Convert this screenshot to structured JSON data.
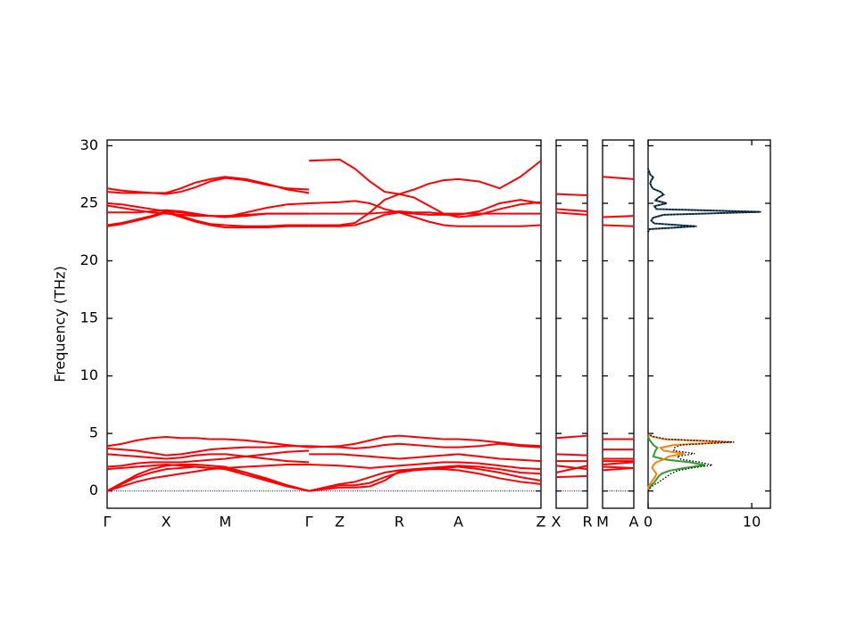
{
  "chart_data": [
    {
      "type": "band",
      "ylabel": "Frequency (THz)",
      "ylim": [
        -1.5,
        30.5
      ],
      "yticks": [
        0,
        5,
        10,
        15,
        20,
        25,
        30
      ],
      "ytick_labels": true,
      "xlim": [
        0,
        7.35
      ],
      "xticks": [
        {
          "value": 0,
          "label": "Γ"
        },
        {
          "value": 1,
          "label": "X"
        },
        {
          "value": 2,
          "label": "M"
        },
        {
          "value": 3.42,
          "label": "Γ"
        },
        {
          "value": 3.94,
          "label": "Z"
        },
        {
          "value": 4.95,
          "label": "R"
        },
        {
          "value": 5.95,
          "label": "A"
        },
        {
          "value": 7.35,
          "label": "Z"
        }
      ],
      "color": "#ff0000",
      "zero_line": {
        "value": 0,
        "color": "#0000ff"
      },
      "segments": [
        {
          "x": [
            0,
            0.25,
            0.5,
            0.75,
            1,
            1.25,
            1.5,
            1.75,
            2,
            2.35,
            2.7,
            3.05,
            3.42
          ],
          "series": [
            {
              "values": [
                26.3,
                26.1,
                26.0,
                25.9,
                25.9,
                26.3,
                26.8,
                27.1,
                27.3,
                27.1,
                26.7,
                26.2,
                25.9
              ]
            },
            {
              "values": [
                26.0,
                25.9,
                25.9,
                25.9,
                25.8,
                26.0,
                26.4,
                26.9,
                27.2,
                27.0,
                26.6,
                26.3,
                26.2
              ]
            },
            {
              "values": [
                25.0,
                24.9,
                24.7,
                24.5,
                24.3,
                24.2,
                24.0,
                23.9,
                23.8,
                24.2,
                24.6,
                24.9,
                25.0
              ]
            },
            {
              "values": [
                24.8,
                24.6,
                24.4,
                24.2,
                24.1,
                24.0,
                23.9,
                23.9,
                23.9,
                24.0,
                24.1,
                24.1,
                24.1
              ]
            },
            {
              "values": [
                24.2,
                24.2,
                24.2,
                24.3,
                24.4,
                24.3,
                24.1,
                23.9,
                23.8,
                23.9,
                24.1,
                24.1,
                24.1
              ]
            },
            {
              "values": [
                23.1,
                23.3,
                23.6,
                23.9,
                24.3,
                23.9,
                23.5,
                23.2,
                23.1,
                23.0,
                23.0,
                23.1,
                23.1
              ]
            },
            {
              "values": [
                23.0,
                23.2,
                23.5,
                23.8,
                24.2,
                23.8,
                23.4,
                23.1,
                22.9,
                22.9,
                22.9,
                23.0,
                23.0
              ]
            },
            {
              "values": [
                3.9,
                4.1,
                4.4,
                4.6,
                4.7,
                4.6,
                4.6,
                4.5,
                4.5,
                4.4,
                4.2,
                4.0,
                3.8
              ]
            },
            {
              "values": [
                3.7,
                3.6,
                3.5,
                3.3,
                3.1,
                3.2,
                3.4,
                3.6,
                3.7,
                3.8,
                3.8,
                3.9,
                3.9
              ]
            },
            {
              "values": [
                3.2,
                3.1,
                3.0,
                2.9,
                2.8,
                2.9,
                3.1,
                3.2,
                3.2,
                3.0,
                2.8,
                2.6,
                2.5
              ]
            },
            {
              "values": [
                2.1,
                2.2,
                2.4,
                2.5,
                2.5,
                2.5,
                2.6,
                2.7,
                2.8,
                3.0,
                3.2,
                3.4,
                3.5
              ]
            },
            {
              "values": [
                1.9,
                2.0,
                2.1,
                2.2,
                2.3,
                2.2,
                2.1,
                2.0,
                2.0,
                2.1,
                2.2,
                2.3,
                2.3
              ]
            },
            {
              "values": [
                0,
                0.7,
                1.4,
                1.9,
                2.2,
                2.3,
                2.3,
                2.2,
                2.1,
                1.6,
                1.1,
                0.5,
                0
              ]
            },
            {
              "values": [
                0,
                0.6,
                1.2,
                1.6,
                1.9,
                2.0,
                2.1,
                2.0,
                1.9,
                1.4,
                0.9,
                0.4,
                0
              ]
            },
            {
              "values": [
                0,
                0.4,
                0.8,
                1.1,
                1.3,
                1.5,
                1.7,
                1.9,
                2.0,
                1.6,
                1.0,
                0.5,
                0
              ]
            }
          ]
        },
        {
          "x": [
            3.42,
            3.94,
            4.2,
            4.45,
            4.7,
            4.95,
            5.2,
            5.45,
            5.7,
            5.95,
            6.3,
            6.65,
            7.0,
            7.35
          ],
          "series": [
            {
              "values": [
                28.7,
                28.8,
                28.0,
                26.9,
                26.0,
                25.8,
                26.2,
                26.7,
                27.0,
                27.1,
                26.9,
                26.3,
                27.3,
                28.7
              ]
            },
            {
              "values": [
                25.0,
                25.1,
                25.2,
                25.0,
                24.5,
                24.2,
                24.1,
                24.0,
                24.0,
                24.0,
                24.3,
                25.0,
                25.3,
                25.0
              ]
            },
            {
              "values": [
                24.1,
                24.1,
                24.1,
                24.1,
                24.2,
                24.3,
                24.2,
                24.2,
                24.1,
                24.1,
                24.1,
                24.1,
                24.1,
                24.1
              ]
            },
            {
              "values": [
                23.1,
                23.1,
                23.3,
                24.2,
                25.3,
                25.8,
                25.5,
                24.8,
                24.1,
                23.8,
                24.0,
                24.5,
                24.9,
                25.1
              ]
            },
            {
              "values": [
                23.0,
                23.0,
                23.1,
                23.5,
                24.0,
                24.2,
                23.8,
                23.4,
                23.1,
                23.0,
                23.0,
                23.0,
                23.0,
                23.1
              ]
            },
            {
              "values": [
                3.8,
                3.9,
                4.1,
                4.4,
                4.7,
                4.8,
                4.7,
                4.6,
                4.5,
                4.5,
                4.4,
                4.2,
                4.0,
                3.9
              ]
            },
            {
              "values": [
                3.9,
                3.8,
                3.7,
                3.8,
                4.0,
                4.1,
                4.0,
                3.9,
                3.8,
                3.8,
                3.9,
                4.1,
                3.9,
                3.8
              ]
            },
            {
              "values": [
                3.2,
                3.2,
                3.1,
                3.0,
                2.9,
                2.8,
                2.9,
                3.0,
                3.1,
                3.2,
                3.0,
                2.8,
                2.7,
                2.6
              ]
            },
            {
              "values": [
                2.3,
                2.2,
                2.1,
                2.0,
                2.1,
                2.2,
                2.3,
                2.4,
                2.5,
                2.5,
                2.4,
                2.2,
                2.0,
                1.9
              ]
            },
            {
              "values": [
                0,
                0.6,
                0.8,
                1.2,
                1.6,
                1.8,
                1.9,
                2.0,
                2.1,
                2.2,
                2.1,
                1.9,
                1.6,
                1.5
              ]
            },
            {
              "values": [
                0,
                0.5,
                0.5,
                0.7,
                1.2,
                1.6,
                1.8,
                1.9,
                2.0,
                2.1,
                1.9,
                1.6,
                1.2,
                0.9
              ]
            },
            {
              "values": [
                0,
                0.3,
                0.3,
                0.4,
                0.9,
                1.7,
                1.8,
                1.9,
                1.9,
                1.8,
                1.5,
                1.1,
                0.8,
                0.6
              ]
            }
          ]
        }
      ]
    },
    {
      "type": "band",
      "ylim": [
        -1.5,
        30.5
      ],
      "yticks": [
        0,
        5,
        10,
        15,
        20,
        25,
        30
      ],
      "ytick_labels": false,
      "xlim": [
        0,
        1
      ],
      "xticks": [
        {
          "value": 0,
          "label": "X"
        },
        {
          "value": 1,
          "label": "R"
        }
      ],
      "color": "#ff0000",
      "zero_line": {
        "value": 0,
        "color": "#0000ff"
      },
      "segments": [
        {
          "x": [
            0,
            1
          ],
          "series": [
            {
              "values": [
                25.8,
                25.7
              ]
            },
            {
              "values": [
                24.5,
                24.3
              ]
            },
            {
              "values": [
                24.2,
                24.0
              ]
            },
            {
              "values": [
                4.6,
                4.8
              ]
            },
            {
              "values": [
                3.2,
                3.1
              ]
            },
            {
              "values": [
                2.6,
                2.6
              ]
            },
            {
              "values": [
                2.2,
                1.9
              ]
            },
            {
              "values": [
                1.6,
                2.2
              ]
            },
            {
              "values": [
                1.2,
                1.3
              ]
            }
          ]
        }
      ]
    },
    {
      "type": "band",
      "ylim": [
        -1.5,
        30.5
      ],
      "yticks": [
        0,
        5,
        10,
        15,
        20,
        25,
        30
      ],
      "ytick_labels": false,
      "xlim": [
        0,
        1
      ],
      "xticks": [
        {
          "value": 0,
          "label": "M"
        },
        {
          "value": 1,
          "label": "A"
        }
      ],
      "color": "#ff0000",
      "zero_line": {
        "value": 0,
        "color": "#0000ff"
      },
      "segments": [
        {
          "x": [
            0,
            1
          ],
          "series": [
            {
              "values": [
                27.3,
                27.1
              ]
            },
            {
              "values": [
                23.8,
                23.9
              ]
            },
            {
              "values": [
                23.1,
                23.0
              ]
            },
            {
              "values": [
                4.5,
                4.5
              ]
            },
            {
              "values": [
                3.6,
                3.6
              ]
            },
            {
              "values": [
                2.8,
                2.8
              ]
            },
            {
              "values": [
                2.6,
                2.6
              ]
            },
            {
              "values": [
                2.3,
                2.5
              ]
            },
            {
              "values": [
                2.1,
                2.0
              ]
            },
            {
              "values": [
                1.8,
                2.0
              ]
            }
          ]
        }
      ]
    },
    {
      "type": "dos",
      "ylim": [
        -1.5,
        30.5
      ],
      "yticks": [
        0,
        5,
        10,
        15,
        20,
        25,
        30
      ],
      "ytick_labels": false,
      "xlim": [
        0,
        11.8
      ],
      "xticks": [
        0,
        10
      ],
      "segments": [
        {
          "y": [
            0,
            0.25,
            0.5,
            0.75,
            1,
            1.25,
            1.5,
            1.75,
            2,
            2.25,
            2.5,
            2.75,
            3,
            3.25,
            3.5,
            3.75,
            4,
            4.25,
            4.5,
            4.75,
            5
          ],
          "series": [
            {
              "color": "#2ca02c",
              "style": "solid",
              "values": [
                0,
                0.1,
                0.3,
                0.6,
                0.8,
                1.0,
                1.3,
                2.0,
                3.5,
                5.5,
                4.0,
                1.5,
                0.5,
                0.6,
                0.7,
                0.9,
                0.5,
                0.3,
                0.1,
                0,
                0
              ]
            },
            {
              "color": "#ff7f0e",
              "style": "solid",
              "values": [
                0,
                0,
                0.1,
                0.3,
                0.5,
                0.7,
                0.8,
                0.6,
                0.4,
                0.5,
                0.8,
                1.5,
                2.0,
                3.5,
                1.5,
                1.2,
                2.5,
                8.0,
                1.5,
                0.3,
                0
              ]
            },
            {
              "color": "#000000",
              "style": "dotted",
              "values": [
                0,
                0.2,
                0.5,
                1.0,
                1.4,
                1.8,
                2.2,
                2.8,
                4.2,
                6.2,
                5.0,
                3.2,
                2.8,
                4.5,
                2.5,
                2.5,
                3.2,
                8.3,
                1.8,
                0.4,
                0
              ]
            }
          ]
        },
        {
          "y": [
            22.5,
            22.75,
            23,
            23.25,
            23.5,
            23.75,
            24,
            24.25,
            24.5,
            24.75,
            25,
            25.25,
            25.5,
            25.75,
            26,
            26.25,
            26.5,
            26.75,
            27,
            27.25,
            27.5,
            27.75,
            28
          ],
          "series": [
            {
              "color": "#1f4e79",
              "style": "solid",
              "values": [
                0,
                0.1,
                4.6,
                0.6,
                0.3,
                0.5,
                1.5,
                10.8,
                0.8,
                0.6,
                1.8,
                0.7,
                1.0,
                1.5,
                1.2,
                0.5,
                0.3,
                0.2,
                0.3,
                0.5,
                0.2,
                0.1,
                0
              ]
            },
            {
              "color": "#000000",
              "style": "dotted",
              "values": [
                0,
                0.1,
                4.7,
                0.6,
                0.3,
                0.5,
                1.5,
                10.9,
                0.8,
                0.6,
                1.8,
                0.7,
                1.0,
                1.5,
                1.2,
                0.5,
                0.3,
                0.2,
                0.3,
                0.5,
                0.2,
                0.1,
                0
              ]
            }
          ]
        }
      ]
    }
  ]
}
